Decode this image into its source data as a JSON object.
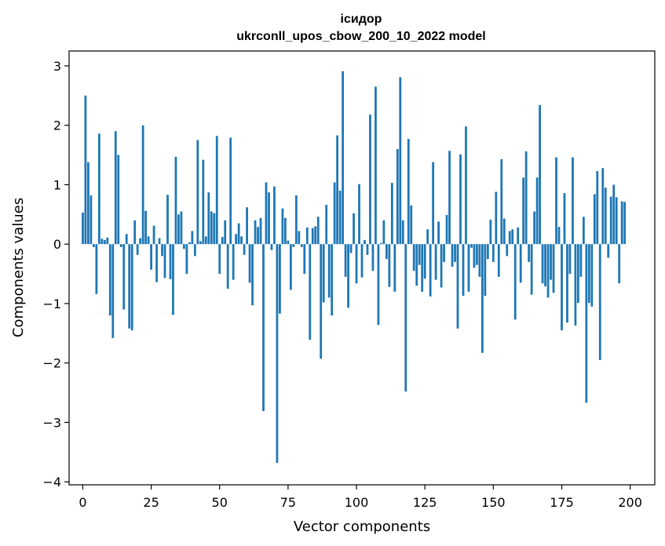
{
  "chart_data": {
    "type": "bar",
    "title": "ісидор",
    "subtitle": "ukrconll_upos_cbow_200_10_2022 model",
    "xlabel": "Vector components",
    "ylabel": "Components values",
    "xlim": [
      -5,
      209
    ],
    "ylim": [
      -4.05,
      3.25
    ],
    "xticks": [
      0,
      25,
      50,
      75,
      100,
      125,
      150,
      175,
      200
    ],
    "yticks": [
      -4,
      -3,
      -2,
      -1,
      0,
      1,
      2,
      3
    ],
    "xtick_labels": [
      "0",
      "25",
      "50",
      "75",
      "100",
      "125",
      "150",
      "175",
      "200"
    ],
    "ytick_labels": [
      "−4",
      "−3",
      "−2",
      "−1",
      "0",
      "1",
      "2",
      "3"
    ],
    "bar_color": "#1f77b4",
    "grid": false,
    "values": [
      0.53,
      2.5,
      1.38,
      0.82,
      -0.05,
      -0.84,
      1.86,
      0.09,
      0.07,
      0.11,
      -1.2,
      -1.58,
      1.9,
      1.5,
      -0.05,
      -1.1,
      0.17,
      -1.42,
      -1.45,
      0.4,
      -0.18,
      0.1,
      2.0,
      0.56,
      0.13,
      -0.43,
      0.31,
      -0.64,
      0.1,
      -0.2,
      -0.57,
      0.83,
      -0.59,
      -1.19,
      1.47,
      0.5,
      0.55,
      -0.08,
      -0.5,
      0.03,
      0.22,
      -0.2,
      1.75,
      0.05,
      1.42,
      0.13,
      0.87,
      0.55,
      0.52,
      1.82,
      -0.5,
      0.12,
      0.4,
      -0.75,
      1.79,
      -0.6,
      0.17,
      0.35,
      0.13,
      -0.18,
      0.62,
      -0.65,
      -1.03,
      0.4,
      0.29,
      0.44,
      -2.81,
      1.04,
      0.87,
      -0.1,
      0.97,
      -3.68,
      -1.17,
      0.6,
      0.44,
      0.06,
      -0.77,
      -0.05,
      0.82,
      0.22,
      -0.05,
      -0.5,
      0.28,
      -1.61,
      0.27,
      0.3,
      0.46,
      -1.93,
      -0.98,
      0.66,
      -0.9,
      -1.2,
      1.04,
      1.83,
      0.9,
      2.91,
      -0.55,
      -1.07,
      -0.15,
      0.52,
      -0.66,
      1.01,
      -0.56,
      0.07,
      -0.18,
      2.18,
      -0.45,
      2.65,
      -1.36,
      0.02,
      0.4,
      -0.25,
      -0.72,
      1.03,
      -0.8,
      1.6,
      2.81,
      0.4,
      -2.48,
      1.77,
      0.65,
      -0.45,
      -0.7,
      -0.35,
      -0.8,
      -0.58,
      0.25,
      -0.88,
      1.38,
      -0.6,
      0.38,
      -0.73,
      -0.3,
      0.49,
      1.57,
      -0.38,
      -0.3,
      -1.42,
      1.51,
      -0.87,
      1.98,
      -0.8,
      -0.06,
      -0.4,
      -0.35,
      -0.55,
      -1.83,
      -0.87,
      -0.25,
      0.41,
      -0.3,
      0.88,
      -0.55,
      1.43,
      0.43,
      -0.2,
      0.22,
      0.25,
      -1.27,
      0.28,
      -0.65,
      1.12,
      1.56,
      -0.3,
      -0.85,
      0.55,
      1.12,
      2.34,
      -0.66,
      -0.71,
      -0.9,
      -0.6,
      -0.82,
      1.46,
      0.29,
      -1.45,
      0.86,
      -1.32,
      -0.5,
      1.46,
      -1.37,
      -0.99,
      -0.55,
      0.46,
      -2.67,
      -0.99,
      -1.05,
      0.84,
      1.23,
      -1.95,
      1.28,
      0.95,
      -0.23,
      0.8,
      1.0,
      0.79,
      -0.66,
      0.72,
      0.71
    ]
  }
}
